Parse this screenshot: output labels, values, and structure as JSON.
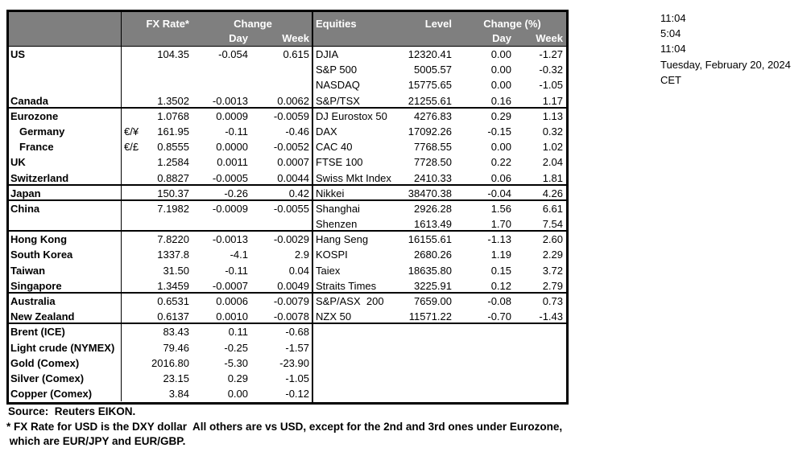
{
  "clock_panel": {
    "lines": [
      "11:04",
      "5:04",
      "11:04",
      "Tuesday, February 20, 2024",
      "CET"
    ]
  },
  "footer": {
    "source": "Source:  Reuters EIKON.",
    "footnote_line1": "* FX Rate for USD is the DXY dollar  All others are vs USD, except for the 2nd and 3rd ones under Eurozone,",
    "footnote_line2": " which are EUR/JPY and EUR/GBP."
  },
  "colors": {
    "header_bg": "#7f7f7f",
    "header_text": "#ffffff",
    "border": "#000000",
    "text": "#000000",
    "background": "#ffffff"
  },
  "chart_data": [
    {
      "type": "table",
      "name": "fx_rates_and_commodities",
      "headers": {
        "rate": "FX Rate*",
        "change_group": "Change",
        "day": "Day",
        "week": "Week"
      },
      "rows": [
        {
          "name": "US",
          "pair": "",
          "rate": "104.35",
          "day": "-0.054",
          "week": "0.615",
          "indent": false
        },
        {
          "name": "",
          "pair": "",
          "rate": "",
          "day": "",
          "week": "",
          "indent": false
        },
        {
          "name": "",
          "pair": "",
          "rate": "",
          "day": "",
          "week": "",
          "indent": false
        },
        {
          "name": "Canada",
          "pair": "",
          "rate": "1.3502",
          "day": "-0.0013",
          "week": "0.0062",
          "indent": false
        },
        {
          "name": "Eurozone",
          "pair": "",
          "rate": "1.0768",
          "day": "0.0009",
          "week": "-0.0059",
          "indent": false
        },
        {
          "name": "Germany",
          "pair": "€/¥",
          "rate": "161.95",
          "day": "-0.11",
          "week": "-0.46",
          "indent": true
        },
        {
          "name": "France",
          "pair": "€/£",
          "rate": "0.8555",
          "day": "0.0000",
          "week": "-0.0052",
          "indent": true
        },
        {
          "name": "UK",
          "pair": "",
          "rate": "1.2584",
          "day": "0.0011",
          "week": "0.0007",
          "indent": false
        },
        {
          "name": "Switzerland",
          "pair": "",
          "rate": "0.8827",
          "day": "-0.0005",
          "week": "0.0044",
          "indent": false
        },
        {
          "name": "Japan",
          "pair": "",
          "rate": "150.37",
          "day": "-0.26",
          "week": "0.42",
          "indent": false
        },
        {
          "name": "China",
          "pair": "",
          "rate": "7.1982",
          "day": "-0.0009",
          "week": "-0.0055",
          "indent": false
        },
        {
          "name": "",
          "pair": "",
          "rate": "",
          "day": "",
          "week": "",
          "indent": false
        },
        {
          "name": "Hong Kong",
          "pair": "",
          "rate": "7.8220",
          "day": "-0.0013",
          "week": "-0.0029",
          "indent": false
        },
        {
          "name": "South Korea",
          "pair": "",
          "rate": "1337.8",
          "day": "-4.1",
          "week": "2.9",
          "indent": false
        },
        {
          "name": "Taiwan",
          "pair": "",
          "rate": "31.50",
          "day": "-0.11",
          "week": "0.04",
          "indent": false
        },
        {
          "name": "Singapore",
          "pair": "",
          "rate": "1.3459",
          "day": "-0.0007",
          "week": "0.0049",
          "indent": false
        },
        {
          "name": "Australia",
          "pair": "",
          "rate": "0.6531",
          "day": "0.0006",
          "week": "-0.0079",
          "indent": false
        },
        {
          "name": "New Zealand",
          "pair": "",
          "rate": "0.6137",
          "day": "0.0010",
          "week": "-0.0078",
          "indent": false
        },
        {
          "name": "Brent (ICE)",
          "pair": "",
          "rate": "83.43",
          "day": "0.11",
          "week": "-0.68",
          "indent": false
        },
        {
          "name": "Light crude (NYMEX)",
          "pair": "",
          "rate": "79.46",
          "day": "-0.25",
          "week": "-1.57",
          "indent": false
        },
        {
          "name": "Gold (Comex)",
          "pair": "",
          "rate": "2016.80",
          "day": "-5.30",
          "week": "-23.90",
          "indent": false
        },
        {
          "name": "Silver (Comex)",
          "pair": "",
          "rate": "23.15",
          "day": "0.29",
          "week": "-1.05",
          "indent": false
        },
        {
          "name": "Copper (Comex)",
          "pair": "",
          "rate": "3.84",
          "day": "0.00",
          "week": "-0.12",
          "indent": false
        }
      ],
      "divider_after_rows": [
        3,
        8,
        9,
        11,
        15,
        17
      ]
    },
    {
      "type": "table",
      "name": "equity_indices",
      "headers": {
        "name": "Equities",
        "level": "Level",
        "change_group": "Change (%)",
        "day": "Day",
        "week": "Week"
      },
      "rows": [
        {
          "name": "DJIA",
          "level": "12320.41",
          "day": "0.00",
          "week": "-1.27"
        },
        {
          "name": "S&P 500",
          "level": "5005.57",
          "day": "0.00",
          "week": "-0.32"
        },
        {
          "name": "NASDAQ",
          "level": "15775.65",
          "day": "0.00",
          "week": "-1.05"
        },
        {
          "name": "S&P/TSX",
          "level": "21255.61",
          "day": "0.16",
          "week": "1.17"
        },
        {
          "name": "DJ Eurostox 50",
          "level": "4276.83",
          "day": "0.29",
          "week": "1.13"
        },
        {
          "name": "DAX",
          "level": "17092.26",
          "day": "-0.15",
          "week": "0.32"
        },
        {
          "name": "CAC 40",
          "level": "7768.55",
          "day": "0.00",
          "week": "1.02"
        },
        {
          "name": "FTSE 100",
          "level": "7728.50",
          "day": "0.22",
          "week": "2.04"
        },
        {
          "name": "Swiss Mkt Index",
          "level": "2410.33",
          "day": "0.06",
          "week": "1.81"
        },
        {
          "name": "Nikkei",
          "level": "38470.38",
          "day": "-0.04",
          "week": "4.26"
        },
        {
          "name": "Shanghai",
          "level": "2926.28",
          "day": "1.56",
          "week": "6.61"
        },
        {
          "name": "Shenzen",
          "level": "1613.49",
          "day": "1.70",
          "week": "7.54"
        },
        {
          "name": "Hang Seng",
          "level": "16155.61",
          "day": "-1.13",
          "week": "2.60"
        },
        {
          "name": "KOSPI",
          "level": "2680.26",
          "day": "1.19",
          "week": "2.29"
        },
        {
          "name": "Taiex",
          "level": "18635.80",
          "day": "0.15",
          "week": "3.72"
        },
        {
          "name": "Straits Times",
          "level": "3225.91",
          "day": "0.12",
          "week": "2.79"
        },
        {
          "name": "S&P/ASX  200",
          "level": "7659.00",
          "day": "-0.08",
          "week": "0.73"
        },
        {
          "name": "NZX 50",
          "level": "11571.22",
          "day": "-0.70",
          "week": "-1.43"
        },
        {
          "name": "",
          "level": "",
          "day": "",
          "week": ""
        },
        {
          "name": "",
          "level": "",
          "day": "",
          "week": ""
        },
        {
          "name": "",
          "level": "",
          "day": "",
          "week": ""
        },
        {
          "name": "",
          "level": "",
          "day": "",
          "week": ""
        },
        {
          "name": "",
          "level": "",
          "day": "",
          "week": ""
        }
      ],
      "divider_after_rows": [
        3,
        8,
        9,
        11,
        15,
        17
      ]
    }
  ]
}
